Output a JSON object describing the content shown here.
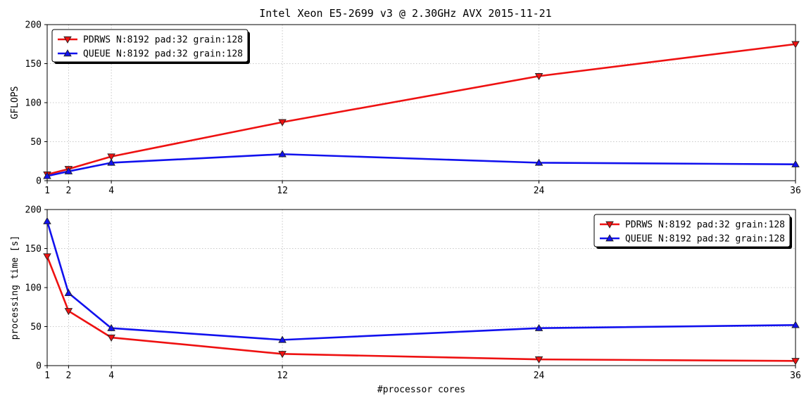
{
  "figure_title": "Intel Xeon E5-2699 v3 @ 2.30GHz AVX 2015-11-21",
  "chart_data": [
    {
      "type": "line",
      "title": "",
      "xlabel": "",
      "ylabel": "GFLOPS",
      "x": [
        1,
        2,
        4,
        12,
        24,
        36
      ],
      "x_ticks": [
        1,
        2,
        4,
        12,
        24,
        36
      ],
      "xlim": [
        1,
        36
      ],
      "ylim": [
        0,
        200
      ],
      "y_ticks": [
        0,
        50,
        100,
        150,
        200
      ],
      "grid": true,
      "legend_position": "top-left",
      "series": [
        {
          "name": "PDRWS N:8192 pad:32 grain:128",
          "color": "#ee1111",
          "marker": "triangle-down",
          "values": [
            8,
            15,
            31,
            75,
            134,
            175
          ]
        },
        {
          "name": "QUEUE N:8192 pad:32 grain:128",
          "color": "#1111ee",
          "marker": "triangle-up",
          "values": [
            6,
            12,
            23,
            34,
            23,
            21
          ]
        }
      ]
    },
    {
      "type": "line",
      "title": "",
      "xlabel": "#processor cores",
      "ylabel": "processing time [s]",
      "x": [
        1,
        2,
        4,
        12,
        24,
        36
      ],
      "x_ticks": [
        1,
        2,
        4,
        12,
        24,
        36
      ],
      "xlim": [
        1,
        36
      ],
      "ylim": [
        0,
        200
      ],
      "y_ticks": [
        0,
        50,
        100,
        150,
        200
      ],
      "grid": true,
      "legend_position": "top-right",
      "series": [
        {
          "name": "PDRWS N:8192 pad:32 grain:128",
          "color": "#ee1111",
          "marker": "triangle-down",
          "values": [
            140,
            70,
            36,
            15,
            8,
            6
          ]
        },
        {
          "name": "QUEUE N:8192 pad:32 grain:128",
          "color": "#1111ee",
          "marker": "triangle-up",
          "values": [
            185,
            93,
            48,
            33,
            48,
            52
          ]
        }
      ]
    }
  ]
}
